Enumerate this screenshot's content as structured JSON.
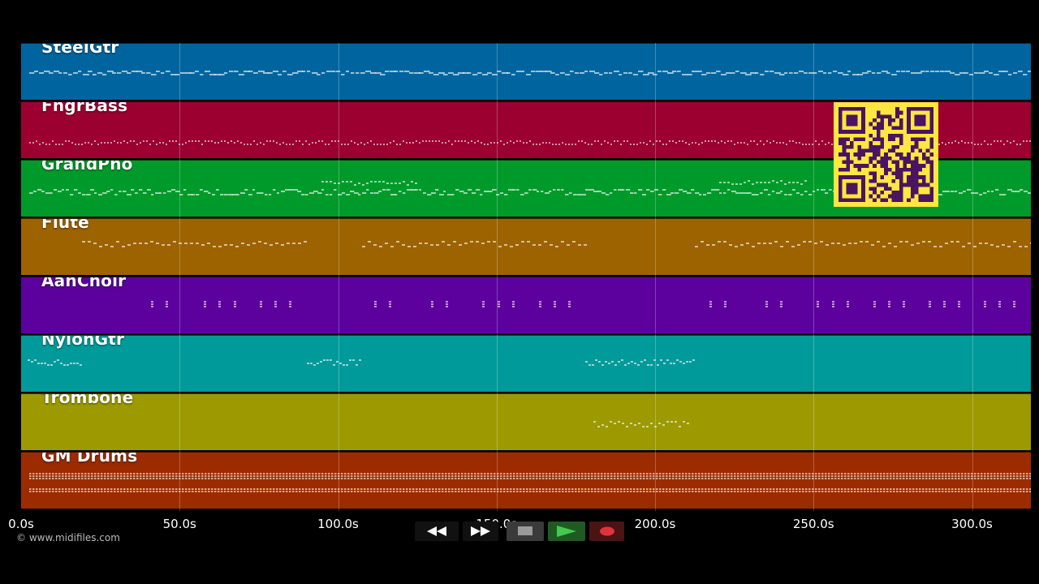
{
  "tracks": [
    {
      "name": "SteelGtr",
      "color": "#00659e"
    },
    {
      "name": "FngrBass",
      "color": "#9b0030"
    },
    {
      "name": "GrandPno",
      "color": "#009a2b"
    },
    {
      "name": "Flute",
      "color": "#9c6300"
    },
    {
      "name": "AahChoir",
      "color": "#5c009e"
    },
    {
      "name": "NylonGtr",
      "color": "#009a9a"
    },
    {
      "name": "Trombone",
      "color": "#9c9a00"
    },
    {
      "name": "GM Drums",
      "color": "#9c2b00"
    }
  ],
  "timeline": {
    "ticks": [
      {
        "label": "0.0s",
        "value": 0
      },
      {
        "label": "50.0s",
        "value": 50
      },
      {
        "label": "100.0s",
        "value": 100
      },
      {
        "label": "150.0s",
        "value": 150
      },
      {
        "label": "200.0s",
        "value": 200
      },
      {
        "label": "250.0s",
        "value": 250
      },
      {
        "label": "300.0s",
        "value": 300
      }
    ]
  },
  "watermark": "© www.midifiles.com",
  "transport": {
    "buttons": [
      {
        "name": "rewind-button",
        "icon": "rewind-icon"
      },
      {
        "name": "fast-forward-button",
        "icon": "fast-forward-icon"
      },
      {
        "name": "stop-button",
        "icon": "stop-icon"
      },
      {
        "name": "play-button",
        "icon": "play-icon"
      },
      {
        "name": "record-button",
        "icon": "record-icon"
      }
    ]
  },
  "qr": {
    "icon": "qr-code-icon"
  }
}
